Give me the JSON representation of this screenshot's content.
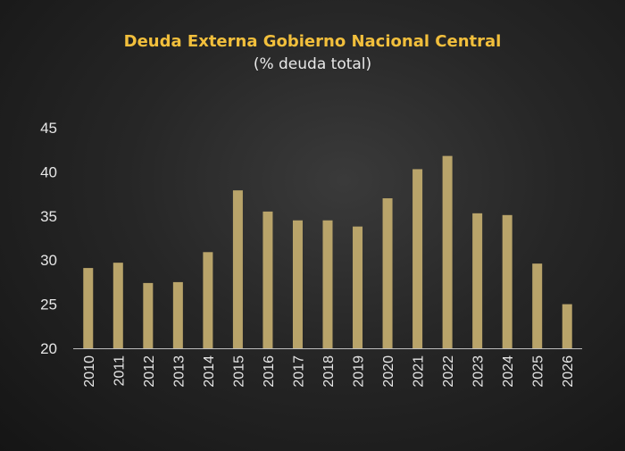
{
  "chart_data": {
    "type": "bar",
    "title": "Deuda Externa Gobierno Nacional Central",
    "subtitle": "(% deuda total)",
    "categories": [
      "2010",
      "2011",
      "2012",
      "2013",
      "2014",
      "2015",
      "2016",
      "2017",
      "2018",
      "2019",
      "2020",
      "2021",
      "2022",
      "2023",
      "2024",
      "2025",
      "2026"
    ],
    "values": [
      29.1,
      29.7,
      27.4,
      27.5,
      30.9,
      37.9,
      35.5,
      34.5,
      34.5,
      33.8,
      37.0,
      40.3,
      41.8,
      35.3,
      35.1,
      29.6,
      25.0
    ],
    "yticks": [
      "20",
      "25",
      "30",
      "35",
      "40",
      "45"
    ],
    "ylim": [
      20,
      45
    ],
    "xlabel": "",
    "ylabel": "",
    "grid": false,
    "colors": {
      "bar": "#b9a46a",
      "title": "#f2bf3c",
      "text": "#e6e6e6",
      "axis": "#bdbdbd"
    }
  }
}
